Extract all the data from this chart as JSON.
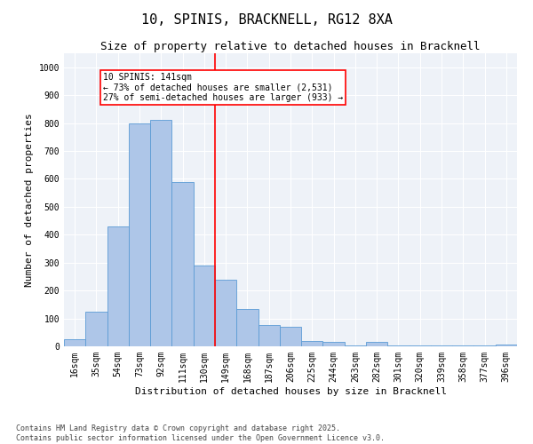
{
  "title": "10, SPINIS, BRACKNELL, RG12 8XA",
  "subtitle": "Size of property relative to detached houses in Bracknell",
  "xlabel": "Distribution of detached houses by size in Bracknell",
  "ylabel": "Number of detached properties",
  "categories": [
    "16sqm",
    "35sqm",
    "54sqm",
    "73sqm",
    "92sqm",
    "111sqm",
    "130sqm",
    "149sqm",
    "168sqm",
    "187sqm",
    "206sqm",
    "225sqm",
    "244sqm",
    "263sqm",
    "282sqm",
    "301sqm",
    "320sqm",
    "339sqm",
    "358sqm",
    "377sqm",
    "396sqm"
  ],
  "values": [
    25,
    125,
    430,
    800,
    810,
    590,
    290,
    240,
    135,
    75,
    70,
    20,
    15,
    2,
    15,
    2,
    2,
    2,
    2,
    2,
    5
  ],
  "bar_color": "#aec6e8",
  "bar_edge_color": "#5b9bd5",
  "vline_x_index": 6.5,
  "vline_color": "red",
  "annotation_text": "10 SPINIS: 141sqm\n← 73% of detached houses are smaller (2,531)\n27% of semi-detached houses are larger (933) →",
  "annotation_box_color": "white",
  "annotation_box_edge_color": "red",
  "ylim": [
    0,
    1050
  ],
  "yticks": [
    0,
    100,
    200,
    300,
    400,
    500,
    600,
    700,
    800,
    900,
    1000
  ],
  "background_color": "#eef2f8",
  "grid_color": "white",
  "footer_line1": "Contains HM Land Registry data © Crown copyright and database right 2025.",
  "footer_line2": "Contains public sector information licensed under the Open Government Licence v3.0.",
  "title_fontsize": 11,
  "subtitle_fontsize": 9,
  "xlabel_fontsize": 8,
  "ylabel_fontsize": 8,
  "tick_fontsize": 7,
  "footer_fontsize": 6,
  "annot_fontsize": 7
}
